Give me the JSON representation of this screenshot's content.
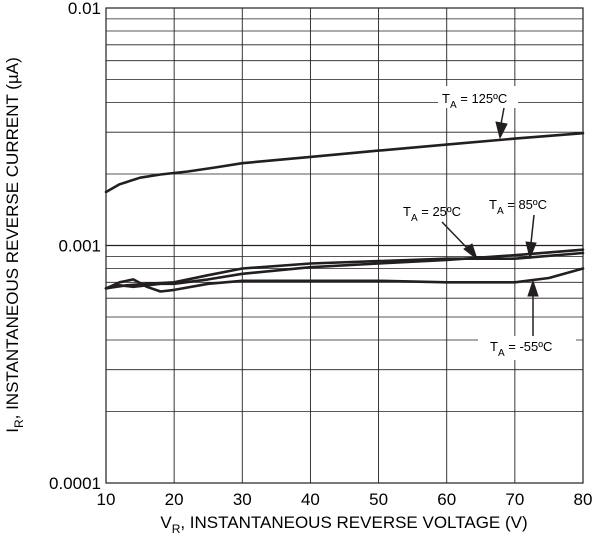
{
  "chart_data": {
    "type": "line",
    "xlabel": {
      "main": "V",
      "sub": "R",
      "rest": ", INSTANTANEOUS REVERSE VOLTAGE (V)"
    },
    "ylabel": {
      "main": "I",
      "sub": "R",
      "rest": ", INSTANTANEOUS REVERSE CURRENT (µA)"
    },
    "xlim": [
      10,
      80
    ],
    "ylim": [
      0.0001,
      0.01
    ],
    "y_scale": "log",
    "grid": true,
    "x_ticks": [
      "10",
      "20",
      "30",
      "40",
      "50",
      "60",
      "70",
      "80"
    ],
    "y_ticks": [
      "0.01",
      "0.001",
      "0.0001"
    ],
    "series": [
      {
        "name": "125ºC",
        "x": [
          10,
          12,
          15,
          18,
          22,
          26,
          30,
          40,
          50,
          60,
          70,
          80
        ],
        "y": [
          0.00168,
          0.00181,
          0.00193,
          0.00199,
          0.00205,
          0.00213,
          0.00222,
          0.00236,
          0.00251,
          0.00266,
          0.00282,
          0.00297
        ]
      },
      {
        "name": "25ºC",
        "x": [
          10,
          13,
          16,
          20,
          25,
          30,
          40,
          50,
          60,
          70,
          80
        ],
        "y": [
          0.00066,
          0.00068,
          0.00069,
          0.0007,
          0.00075,
          0.0008,
          0.00084,
          0.00086,
          0.00088,
          0.00088,
          0.00093
        ]
      },
      {
        "name": "85ºC",
        "x": [
          10,
          12,
          14,
          16,
          18,
          20,
          25,
          30,
          40,
          50,
          60,
          70,
          80
        ],
        "y": [
          0.00066,
          0.00068,
          0.00067,
          0.00068,
          0.00069,
          0.00069,
          0.00072,
          0.00076,
          0.00081,
          0.00084,
          0.00087,
          0.00091,
          0.00096
        ]
      },
      {
        "name": "-55ºC",
        "x": [
          10,
          12,
          14,
          16,
          18,
          20,
          25,
          30,
          40,
          50,
          60,
          70,
          75,
          80
        ],
        "y": [
          0.00066,
          0.0007,
          0.00072,
          0.00067,
          0.00064,
          0.00065,
          0.00069,
          0.00071,
          0.00071,
          0.00071,
          0.0007,
          0.0007,
          0.00073,
          0.0008
        ]
      }
    ],
    "annotations": [
      {
        "main": "T",
        "sub": "A",
        "rest": " = 125ºC"
      },
      {
        "main": "T",
        "sub": "A",
        "rest": " = 25ºC"
      },
      {
        "main": "T",
        "sub": "A",
        "rest": " = 85ºC"
      },
      {
        "main": "T",
        "sub": "A",
        "rest": " = -55ºC"
      }
    ],
    "colors": {
      "line": "#231f20",
      "grid": "#231f20",
      "background": "#ffffff"
    }
  }
}
